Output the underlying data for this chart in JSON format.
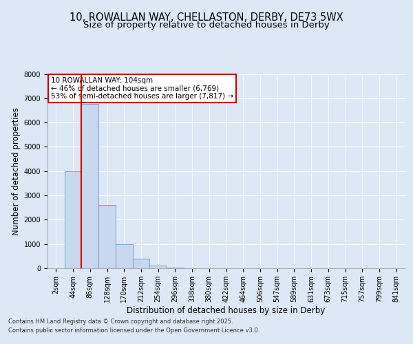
{
  "title_line1": "10, ROWALLAN WAY, CHELLASTON, DERBY, DE73 5WX",
  "title_line2": "Size of property relative to detached houses in Derby",
  "xlabel": "Distribution of detached houses by size in Derby",
  "ylabel": "Number of detached properties",
  "bar_categories": [
    "2sqm",
    "44sqm",
    "86sqm",
    "128sqm",
    "170sqm",
    "212sqm",
    "254sqm",
    "296sqm",
    "338sqm",
    "380sqm",
    "422sqm",
    "464sqm",
    "506sqm",
    "547sqm",
    "589sqm",
    "631sqm",
    "673sqm",
    "715sqm",
    "757sqm",
    "799sqm",
    "841sqm"
  ],
  "bar_values": [
    2,
    4000,
    6769,
    2600,
    1000,
    400,
    100,
    30,
    5,
    2,
    1,
    0,
    0,
    0,
    0,
    0,
    0,
    0,
    0,
    0,
    0
  ],
  "bar_color": "#c8d8ee",
  "bar_edge_color": "#6699cc",
  "vline_pos": 1.5,
  "vline_color": "#cc0000",
  "annotation_text": "10 ROWALLAN WAY: 104sqm\n← 46% of detached houses are smaller (6,769)\n53% of semi-detached houses are larger (7,817) →",
  "annotation_box_facecolor": "#ffffff",
  "annotation_box_edgecolor": "#cc0000",
  "ylim": [
    0,
    8000
  ],
  "yticks": [
    0,
    1000,
    2000,
    3000,
    4000,
    5000,
    6000,
    7000,
    8000
  ],
  "footer_line1": "Contains HM Land Registry data © Crown copyright and database right 2025.",
  "footer_line2": "Contains public sector information licensed under the Open Government Licence v3.0.",
  "bg_color": "#dce8f5",
  "plot_bg_color": "#dce8f5",
  "grid_color": "#ffffff",
  "title_fontsize": 10.5,
  "subtitle_fontsize": 9.5,
  "axis_label_fontsize": 8.5,
  "tick_fontsize": 7,
  "annotation_fontsize": 7.5,
  "footer_fontsize": 6
}
